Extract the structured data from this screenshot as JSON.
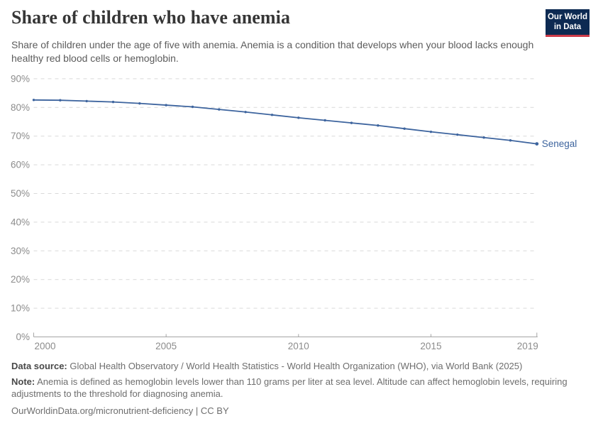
{
  "header": {
    "title": "Share of children who have anemia",
    "subtitle": "Share of children under the age of five with anemia. Anemia is a condition that develops when your blood lacks enough healthy red blood cells or hemoglobin.",
    "logo": {
      "line1": "Our World",
      "line2": "in Data",
      "bg_color": "#0d2a52",
      "stripe_color": "#cc3b49"
    }
  },
  "chart_data": {
    "type": "line",
    "title": "Share of children who have anemia",
    "x": [
      2000,
      2001,
      2002,
      2003,
      2004,
      2005,
      2006,
      2007,
      2008,
      2009,
      2010,
      2011,
      2012,
      2013,
      2014,
      2015,
      2016,
      2017,
      2018,
      2019
    ],
    "series": [
      {
        "name": "Senegal",
        "color": "#3d649e",
        "values": [
          82.6,
          82.5,
          82.2,
          81.9,
          81.4,
          80.8,
          80.2,
          79.3,
          78.4,
          77.4,
          76.4,
          75.5,
          74.6,
          73.7,
          72.6,
          71.5,
          70.5,
          69.5,
          68.5,
          67.3
        ]
      }
    ],
    "xlim": [
      2000,
      2019
    ],
    "ylim": [
      0,
      90
    ],
    "x_ticks": [
      2000,
      2005,
      2010,
      2015,
      2019
    ],
    "y_ticks": [
      0,
      10,
      20,
      30,
      40,
      50,
      60,
      70,
      80,
      90
    ],
    "y_tick_suffix": "%",
    "grid": "horizontal dashed",
    "legend_position": "end-of-line",
    "grid_color": "#d9d9d9",
    "axis_color": "#a5a5a5",
    "tick_label_color": "#8c8c8c"
  },
  "footer": {
    "data_source_label": "Data source:",
    "data_source_text": "Global Health Observatory / World Health Statistics - World Health Organization (WHO), via World Bank (2025)",
    "note_label": "Note:",
    "note_text": "Anemia is defined as hemoglobin levels lower than 110 grams per liter at sea level. Altitude can affect hemoglobin levels, requiring adjustments to the threshold for diagnosing anemia.",
    "url_text": "OurWorldinData.org/micronutrient-deficiency",
    "separator": "|",
    "license_text": "CC BY"
  }
}
